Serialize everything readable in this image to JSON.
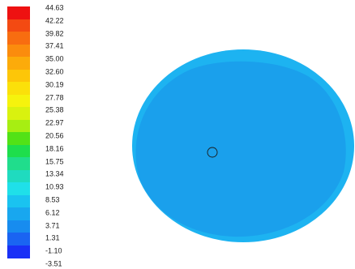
{
  "colorbar": {
    "labels": [
      "44.63",
      "42.22",
      "39.82",
      "37.41",
      "35.00",
      "32.60",
      "30.19",
      "27.78",
      "25.38",
      "22.97",
      "20.56",
      "18.16",
      "15.75",
      "13.34",
      "10.93",
      "8.53",
      "6.12",
      "3.71",
      "1.31",
      "-1.10",
      "-3.51"
    ],
    "colors": [
      "#ee1111",
      "#f34a12",
      "#f86d10",
      "#fb8c0d",
      "#fcab0a",
      "#fdc608",
      "#fbe00a",
      "#f6f30d",
      "#d9f20f",
      "#a7ee12",
      "#52e216",
      "#1ede4c",
      "#20dd8c",
      "#1fdbbf",
      "#1fe0e9",
      "#1ac3f0",
      "#18a7ef",
      "#178cef",
      "#1a64f2",
      "#1930f6"
    ]
  },
  "contour": {
    "fill_color": "#1aa0ec",
    "edge_color": "#1db3f1"
  }
}
